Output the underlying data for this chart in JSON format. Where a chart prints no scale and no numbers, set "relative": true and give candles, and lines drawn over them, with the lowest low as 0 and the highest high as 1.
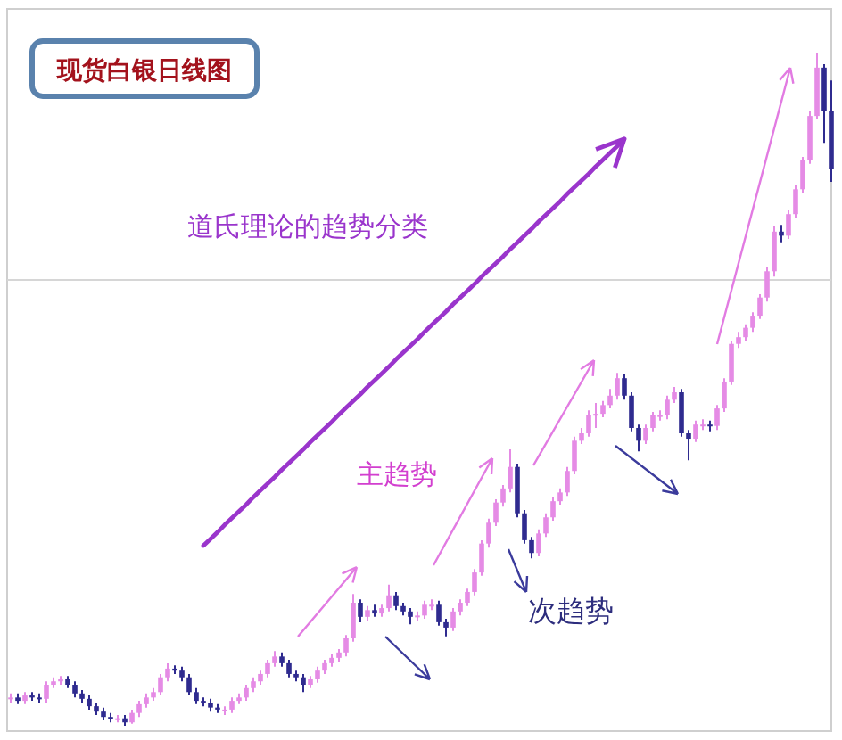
{
  "chart_data": {
    "type": "candlestick",
    "title": "现货白银日线图",
    "annotations": [
      "道氏理论的趋势分类",
      "主趋势",
      "次趋势"
    ],
    "relative": true,
    "categories": [
      null,
      null,
      null,
      null,
      null,
      null,
      null,
      null,
      null,
      null,
      null,
      null,
      null,
      null,
      null,
      null,
      null,
      null,
      null,
      null,
      null,
      null,
      null,
      null,
      null,
      null,
      null,
      null,
      null,
      null,
      null,
      null,
      null,
      null,
      null,
      null,
      null,
      null,
      null,
      null,
      null,
      null,
      null,
      null,
      null,
      null,
      null,
      null,
      null,
      null,
      null,
      null,
      null,
      null,
      null,
      null,
      null,
      null,
      null,
      null,
      null,
      null,
      null,
      null,
      null,
      null,
      null,
      null,
      null,
      null,
      null,
      null,
      null,
      null,
      null,
      null,
      null,
      null,
      null,
      null,
      null,
      null,
      null,
      null,
      null,
      null,
      null,
      null,
      null,
      null,
      null,
      null,
      null,
      null,
      null,
      null,
      null,
      null,
      null,
      null,
      null,
      null,
      null,
      null,
      null,
      null,
      null,
      null,
      null,
      null,
      null,
      null,
      null,
      null,
      null,
      null
    ],
    "ohlc": [
      [
        0.04,
        0.048,
        0.034,
        0.042
      ],
      [
        0.042,
        0.048,
        0.032,
        0.037
      ],
      [
        0.037,
        0.05,
        0.032,
        0.045
      ],
      [
        0.045,
        0.05,
        0.037,
        0.042
      ],
      [
        0.042,
        0.048,
        0.034,
        0.04
      ],
      [
        0.04,
        0.066,
        0.034,
        0.061
      ],
      [
        0.061,
        0.072,
        0.056,
        0.066
      ],
      [
        0.066,
        0.074,
        0.061,
        0.069
      ],
      [
        0.069,
        0.074,
        0.056,
        0.061
      ],
      [
        0.061,
        0.066,
        0.042,
        0.048
      ],
      [
        0.048,
        0.053,
        0.034,
        0.04
      ],
      [
        0.04,
        0.045,
        0.024,
        0.029
      ],
      [
        0.029,
        0.034,
        0.016,
        0.021
      ],
      [
        0.021,
        0.027,
        0.008,
        0.013
      ],
      [
        0.013,
        0.019,
        0.005,
        0.011
      ],
      [
        0.011,
        0.016,
        0.005,
        0.011
      ],
      [
        0.011,
        0.016,
        0,
        0.005
      ],
      [
        0.005,
        0.024,
        0.003,
        0.019
      ],
      [
        0.019,
        0.037,
        0.013,
        0.032
      ],
      [
        0.032,
        0.048,
        0.027,
        0.042
      ],
      [
        0.042,
        0.056,
        0.037,
        0.05
      ],
      [
        0.05,
        0.077,
        0.045,
        0.072
      ],
      [
        0.072,
        0.093,
        0.066,
        0.085
      ],
      [
        0.085,
        0.09,
        0.077,
        0.082
      ],
      [
        0.082,
        0.088,
        0.066,
        0.072
      ],
      [
        0.072,
        0.077,
        0.045,
        0.05
      ],
      [
        0.05,
        0.056,
        0.032,
        0.037
      ],
      [
        0.037,
        0.042,
        0.029,
        0.034
      ],
      [
        0.034,
        0.04,
        0.021,
        0.027
      ],
      [
        0.027,
        0.032,
        0.019,
        0.024
      ],
      [
        0.024,
        0.029,
        0.016,
        0.024
      ],
      [
        0.024,
        0.042,
        0.019,
        0.037
      ],
      [
        0.037,
        0.048,
        0.032,
        0.042
      ],
      [
        0.042,
        0.061,
        0.037,
        0.056
      ],
      [
        0.056,
        0.072,
        0.05,
        0.066
      ],
      [
        0.066,
        0.082,
        0.061,
        0.077
      ],
      [
        0.077,
        0.098,
        0.072,
        0.093
      ],
      [
        0.093,
        0.111,
        0.088,
        0.103
      ],
      [
        0.103,
        0.109,
        0.088,
        0.093
      ],
      [
        0.093,
        0.098,
        0.072,
        0.077
      ],
      [
        0.077,
        0.082,
        0.066,
        0.072
      ],
      [
        0.072,
        0.077,
        0.05,
        0.061
      ],
      [
        0.061,
        0.074,
        0.056,
        0.069
      ],
      [
        0.069,
        0.088,
        0.064,
        0.082
      ],
      [
        0.082,
        0.098,
        0.077,
        0.093
      ],
      [
        0.093,
        0.106,
        0.088,
        0.101
      ],
      [
        0.101,
        0.114,
        0.095,
        0.109
      ],
      [
        0.109,
        0.135,
        0.103,
        0.13
      ],
      [
        0.13,
        0.196,
        0.125,
        0.183
      ],
      [
        0.183,
        0.188,
        0.154,
        0.162
      ],
      [
        0.162,
        0.178,
        0.156,
        0.172
      ],
      [
        0.172,
        0.18,
        0.162,
        0.167
      ],
      [
        0.167,
        0.18,
        0.162,
        0.175
      ],
      [
        0.175,
        0.21,
        0.17,
        0.194
      ],
      [
        0.194,
        0.199,
        0.172,
        0.178
      ],
      [
        0.178,
        0.183,
        0.164,
        0.17
      ],
      [
        0.17,
        0.175,
        0.151,
        0.162
      ],
      [
        0.162,
        0.17,
        0.156,
        0.164
      ],
      [
        0.164,
        0.186,
        0.159,
        0.18
      ],
      [
        0.18,
        0.188,
        0.172,
        0.18
      ],
      [
        0.18,
        0.186,
        0.149,
        0.154
      ],
      [
        0.154,
        0.159,
        0.133,
        0.146
      ],
      [
        0.146,
        0.175,
        0.141,
        0.17
      ],
      [
        0.17,
        0.188,
        0.164,
        0.183
      ],
      [
        0.183,
        0.204,
        0.178,
        0.199
      ],
      [
        0.199,
        0.233,
        0.194,
        0.228
      ],
      [
        0.228,
        0.276,
        0.223,
        0.271
      ],
      [
        0.271,
        0.308,
        0.265,
        0.302
      ],
      [
        0.302,
        0.337,
        0.297,
        0.332
      ],
      [
        0.332,
        0.358,
        0.326,
        0.353
      ],
      [
        0.353,
        0.411,
        0.347,
        0.385
      ],
      [
        0.385,
        0.39,
        0.31,
        0.316
      ],
      [
        0.316,
        0.321,
        0.271,
        0.276
      ],
      [
        0.276,
        0.281,
        0.249,
        0.257
      ],
      [
        0.257,
        0.292,
        0.252,
        0.286
      ],
      [
        0.286,
        0.316,
        0.281,
        0.31
      ],
      [
        0.31,
        0.34,
        0.305,
        0.334
      ],
      [
        0.334,
        0.353,
        0.329,
        0.347
      ],
      [
        0.347,
        0.385,
        0.342,
        0.379
      ],
      [
        0.379,
        0.43,
        0.374,
        0.424
      ],
      [
        0.424,
        0.443,
        0.419,
        0.435
      ],
      [
        0.435,
        0.469,
        0.43,
        0.462
      ],
      [
        0.462,
        0.48,
        0.443,
        0.464
      ],
      [
        0.464,
        0.483,
        0.459,
        0.477
      ],
      [
        0.477,
        0.501,
        0.472,
        0.491
      ],
      [
        0.491,
        0.525,
        0.485,
        0.517
      ],
      [
        0.517,
        0.523,
        0.485,
        0.491
      ],
      [
        0.491,
        0.496,
        0.438,
        0.443
      ],
      [
        0.443,
        0.448,
        0.408,
        0.424
      ],
      [
        0.424,
        0.448,
        0.419,
        0.443
      ],
      [
        0.443,
        0.467,
        0.438,
        0.462
      ],
      [
        0.462,
        0.469,
        0.454,
        0.462
      ],
      [
        0.462,
        0.491,
        0.456,
        0.485
      ],
      [
        0.485,
        0.504,
        0.48,
        0.496
      ],
      [
        0.496,
        0.501,
        0.43,
        0.435
      ],
      [
        0.435,
        0.44,
        0.395,
        0.427
      ],
      [
        0.427,
        0.454,
        0.422,
        0.448
      ],
      [
        0.448,
        0.456,
        0.44,
        0.448
      ],
      [
        0.448,
        0.454,
        0.438,
        0.446
      ],
      [
        0.446,
        0.477,
        0.44,
        0.472
      ],
      [
        0.472,
        0.517,
        0.467,
        0.512
      ],
      [
        0.512,
        0.573,
        0.507,
        0.568
      ],
      [
        0.568,
        0.586,
        0.562,
        0.578
      ],
      [
        0.578,
        0.597,
        0.573,
        0.592
      ],
      [
        0.592,
        0.615,
        0.586,
        0.61
      ],
      [
        0.61,
        0.642,
        0.605,
        0.637
      ],
      [
        0.637,
        0.682,
        0.631,
        0.676
      ],
      [
        0.676,
        0.743,
        0.668,
        0.735
      ],
      [
        0.735,
        0.745,
        0.719,
        0.729
      ],
      [
        0.729,
        0.767,
        0.724,
        0.761
      ],
      [
        0.761,
        0.804,
        0.756,
        0.798
      ],
      [
        0.798,
        0.846,
        0.793,
        0.841
      ],
      [
        0.841,
        0.915,
        0.836,
        0.907
      ],
      [
        0.907,
        1,
        0.902,
        0.979
      ],
      [
        0.979,
        0.984,
        0.867,
        0.915
      ],
      [
        0.915,
        0.96,
        0.809,
        0.828
      ]
    ],
    "colors": [
      "#e58be5",
      "#2f2b8f",
      "#e58be5",
      "#2f2b8f",
      "#2f2b8f",
      "#e58be5",
      "#e58be5",
      "#e58be5",
      "#2f2b8f",
      "#2f2b8f",
      "#2f2b8f",
      "#2f2b8f",
      "#2f2b8f",
      "#2f2b8f",
      "#2f2b8f",
      "#e58be5",
      "#2f2b8f",
      "#e58be5",
      "#e58be5",
      "#e58be5",
      "#e58be5",
      "#e58be5",
      "#e58be5",
      "#2f2b8f",
      "#2f2b8f",
      "#2f2b8f",
      "#2f2b8f",
      "#2f2b8f",
      "#2f2b8f",
      "#2f2b8f",
      "#e58be5",
      "#e58be5",
      "#e58be5",
      "#e58be5",
      "#e58be5",
      "#e58be5",
      "#e58be5",
      "#e58be5",
      "#2f2b8f",
      "#2f2b8f",
      "#2f2b8f",
      "#2f2b8f",
      "#e58be5",
      "#e58be5",
      "#e58be5",
      "#e58be5",
      "#e58be5",
      "#e58be5",
      "#e58be5",
      "#2f2b8f",
      "#e58be5",
      "#2f2b8f",
      "#e58be5",
      "#e58be5",
      "#2f2b8f",
      "#2f2b8f",
      "#2f2b8f",
      "#e58be5",
      "#e58be5",
      "#e58be5",
      "#2f2b8f",
      "#2f2b8f",
      "#e58be5",
      "#e58be5",
      "#e58be5",
      "#e58be5",
      "#e58be5",
      "#e58be5",
      "#e58be5",
      "#e58be5",
      "#e58be5",
      "#2f2b8f",
      "#2f2b8f",
      "#2f2b8f",
      "#e58be5",
      "#e58be5",
      "#e58be5",
      "#e58be5",
      "#e58be5",
      "#e58be5",
      "#e58be5",
      "#e58be5",
      "#e58be5",
      "#e58be5",
      "#e58be5",
      "#e58be5",
      "#2f2b8f",
      "#2f2b8f",
      "#2f2b8f",
      "#e58be5",
      "#e58be5",
      "#e58be5",
      "#e58be5",
      "#e58be5",
      "#2f2b8f",
      "#2f2b8f",
      "#e58be5",
      "#e58be5",
      "#2f2b8f",
      "#e58be5",
      "#e58be5",
      "#e58be5",
      "#e58be5",
      "#e58be5",
      "#e58be5",
      "#e58be5",
      "#e58be5",
      "#e58be5",
      "#2f2b8f",
      "#e58be5",
      "#e58be5",
      "#e58be5",
      "#e58be5",
      "#e58be5",
      "#2f2b8f",
      "#2f2b8f"
    ],
    "series": [
      {
        "type": "line",
        "color": "#9a35cc",
        "values": [
          null,
          null,
          null,
          null,
          null,
          null,
          null,
          null,
          null,
          null,
          null,
          null,
          null,
          null,
          null,
          null,
          null,
          null,
          null,
          null,
          null,
          null,
          null,
          null,
          null,
          null,
          null,
          0.268,
          0.278,
          0.288,
          0.299,
          0.309,
          0.319,
          0.329,
          0.34,
          0.35,
          0.36,
          0.37,
          0.381,
          0.391,
          0.401,
          0.411,
          0.422,
          0.432,
          0.442,
          0.452,
          0.463,
          0.473,
          0.483,
          0.493,
          0.504,
          0.514,
          0.524,
          0.534,
          0.545,
          0.555,
          0.565,
          0.575,
          0.586,
          0.596,
          0.606,
          0.616,
          0.627,
          0.637,
          0.647,
          0.657,
          0.668,
          0.678,
          0.688,
          0.698,
          0.709,
          0.719,
          0.729,
          0.739,
          0.75,
          0.76,
          0.77,
          0.78,
          0.791,
          0.801,
          0.811,
          0.821,
          0.832,
          0.842,
          0.852,
          0.862,
          0.873,
          null,
          null,
          null,
          null,
          null,
          null,
          null,
          null,
          null,
          null,
          null,
          null,
          null,
          null,
          null,
          null,
          null,
          null,
          null,
          null,
          null,
          null,
          null,
          null,
          null,
          null,
          null,
          null,
          null
        ]
      }
    ],
    "ref_lines": [
      {
        "axis": "y",
        "value": 0.663,
        "color": "#d6d6d6"
      }
    ]
  }
}
